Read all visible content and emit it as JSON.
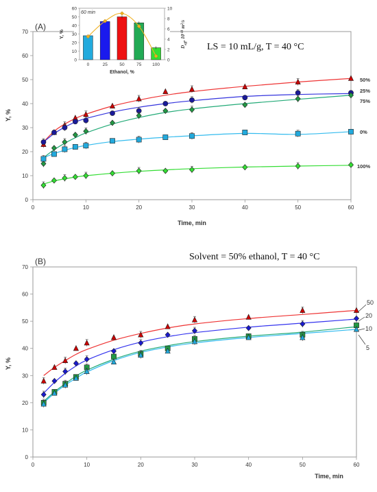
{
  "chart_data": [
    {
      "id": "A",
      "type": "scatter",
      "panel_label": "(A)",
      "annotation": "LS = 10 mL/g, T = 40 °C",
      "xlabel": "Time, min",
      "ylabel": "Y, %",
      "xlim": [
        0,
        60
      ],
      "ylim": [
        0,
        70
      ],
      "xticks": [
        0,
        10,
        20,
        30,
        40,
        50,
        60
      ],
      "yticks": [
        0,
        10,
        20,
        30,
        40,
        50,
        60,
        70
      ],
      "series": [
        {
          "name": "50%",
          "marker": "triangle",
          "color": "#cc0000",
          "line_color": "#ee3333",
          "x": [
            2,
            4,
            6,
            8,
            10,
            15,
            20,
            25,
            30,
            40,
            50,
            60
          ],
          "y": [
            23,
            28,
            31,
            34,
            35.5,
            39,
            42,
            45,
            46,
            47,
            49,
            50.5
          ],
          "fit": [
            24,
            28.5,
            31.5,
            33.8,
            35.6,
            39,
            41.5,
            43.5,
            45,
            47.2,
            49,
            50.5
          ]
        },
        {
          "name": "25%",
          "marker": "circle",
          "color": "#1a1a99",
          "line_color": "#3333dd",
          "x": [
            2,
            4,
            6,
            8,
            10,
            15,
            20,
            25,
            30,
            40,
            50,
            60
          ],
          "y": [
            24,
            28,
            30,
            32.5,
            33,
            36,
            37,
            40,
            41.5,
            42.5,
            44.5,
            44.5
          ],
          "fit": [
            24,
            27.5,
            30.2,
            32.3,
            33.8,
            36.5,
            38.5,
            40,
            41.2,
            43,
            43.8,
            44.2
          ]
        },
        {
          "name": "75%",
          "marker": "diamond",
          "color": "#229944",
          "line_color": "#22aa77",
          "x": [
            2,
            4,
            6,
            8,
            10,
            15,
            20,
            25,
            30,
            40,
            50,
            60
          ],
          "y": [
            15,
            21.5,
            24,
            27,
            28.5,
            32,
            35,
            37,
            37.5,
            39.5,
            42,
            43.5
          ],
          "fit": [
            17.5,
            20.8,
            23.5,
            25.8,
            27.8,
            31.5,
            34.2,
            36.3,
            37.8,
            40,
            41.8,
            43.5
          ]
        },
        {
          "name": "0%",
          "marker": "square",
          "color": "#22aadd",
          "line_color": "#33bbee",
          "x": [
            2,
            4,
            6,
            8,
            10,
            15,
            20,
            25,
            30,
            40,
            50,
            60
          ],
          "y": [
            17,
            19,
            21,
            22,
            22.5,
            24.5,
            25,
            26,
            26.5,
            28,
            27.5,
            28.3
          ],
          "fit": [
            17.5,
            19.2,
            20.6,
            21.7,
            22.6,
            24.2,
            25.2,
            26,
            26.6,
            27.6,
            27.2,
            28.3
          ]
        },
        {
          "name": "100%",
          "marker": "diamond",
          "color": "#33dd33",
          "line_color": "#33dd33",
          "x": [
            2,
            4,
            6,
            8,
            10,
            15,
            20,
            25,
            30,
            40,
            50,
            60
          ],
          "y": [
            6,
            8,
            9,
            9.5,
            10,
            11,
            12,
            12,
            12.5,
            13.5,
            14,
            14.5
          ],
          "fit": [
            6.5,
            7.8,
            8.7,
            9.4,
            10,
            11,
            11.8,
            12.4,
            12.9,
            13.6,
            14,
            14.3
          ]
        }
      ],
      "inset": {
        "type": "bar",
        "title": "60 min",
        "xlabel": "Ethanol, %",
        "ylabel": "Y, %",
        "y2label": "D_eff, 10^-11 m^2/s",
        "categories": [
          "0",
          "25",
          "50",
          "75",
          "100"
        ],
        "values": [
          28,
          44.5,
          50,
          43,
          14
        ],
        "bar_colors": [
          "#22aadd",
          "#1a1aee",
          "#ee1111",
          "#22aa55",
          "#33dd33"
        ],
        "ylim": [
          0,
          60
        ],
        "y2lim": [
          0,
          10
        ],
        "yticks": [
          0,
          10,
          20,
          30,
          40,
          50,
          60
        ],
        "y2ticks": [
          0,
          2,
          4,
          6,
          8,
          10
        ],
        "deff": [
          4.5,
          7.5,
          9,
          6.5,
          0.7
        ],
        "deff_color": "#f0b020"
      }
    },
    {
      "id": "B",
      "type": "scatter",
      "panel_label": "(B)",
      "annotation": "Solvent = 50% ethanol, T = 40 °C",
      "xlabel": "Time, min",
      "ylabel": "Y, %",
      "xlim": [
        0,
        60
      ],
      "ylim": [
        0,
        70
      ],
      "xticks": [
        0,
        10,
        20,
        30,
        40,
        50,
        60
      ],
      "yticks": [
        0,
        10,
        20,
        30,
        40,
        50,
        60,
        70
      ],
      "series": [
        {
          "name": "50",
          "marker": "triangle",
          "color": "#cc0000",
          "line_color": "#ee3333",
          "x": [
            2,
            4,
            6,
            8,
            10,
            15,
            20,
            25,
            30,
            40,
            50,
            60
          ],
          "y": [
            28,
            33,
            35.5,
            40,
            42,
            44,
            45,
            48,
            50.5,
            51.5,
            54,
            54
          ],
          "fit": [
            30,
            33,
            35.5,
            37.8,
            39.6,
            43,
            45.5,
            47.5,
            49,
            51,
            52.5,
            54
          ]
        },
        {
          "name": "20",
          "marker": "diamond",
          "color": "#1a1acc",
          "line_color": "#3333ee",
          "x": [
            2,
            4,
            6,
            8,
            10,
            15,
            20,
            25,
            30,
            40,
            50,
            60
          ],
          "y": [
            23,
            28,
            31.5,
            34.5,
            36,
            39,
            42,
            45,
            46.5,
            47.5,
            49,
            51
          ],
          "fit": [
            23.5,
            27.5,
            30.8,
            33.5,
            35.7,
            39.5,
            42.3,
            44.3,
            45.8,
            47.8,
            49.3,
            50.8
          ]
        },
        {
          "name": "10",
          "marker": "square",
          "color": "#229944",
          "line_color": "#22aa77",
          "x": [
            2,
            4,
            6,
            8,
            10,
            15,
            20,
            25,
            30,
            40,
            50,
            60
          ],
          "y": [
            20,
            24,
            27,
            29.5,
            33,
            37,
            38,
            40,
            43.5,
            44.5,
            45,
            48.5
          ],
          "fit": [
            20.5,
            24,
            27,
            29.8,
            32,
            36,
            39,
            41,
            42.5,
            44.5,
            46,
            48
          ]
        },
        {
          "name": "5",
          "marker": "triangle",
          "color": "#22aadd",
          "line_color": "#33bbee",
          "x": [
            2,
            4,
            6,
            8,
            10,
            15,
            20,
            25,
            30,
            40,
            50,
            60
          ],
          "y": [
            19.5,
            23.5,
            26.5,
            29,
            31.5,
            35,
            37.5,
            39,
            42.5,
            44,
            44,
            47
          ],
          "fit": [
            20,
            23.5,
            26.5,
            29,
            31.3,
            35.5,
            38.5,
            40.5,
            42,
            44,
            45.5,
            47
          ]
        }
      ]
    }
  ]
}
